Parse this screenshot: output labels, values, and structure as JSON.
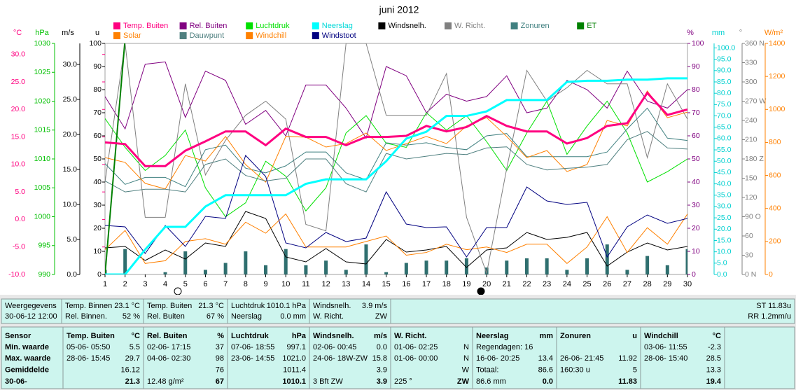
{
  "chart_data": {
    "type": "line",
    "title": "juni 2012",
    "x": [
      1,
      2,
      3,
      4,
      5,
      6,
      7,
      8,
      9,
      10,
      11,
      12,
      13,
      14,
      15,
      16,
      17,
      18,
      19,
      20,
      21,
      22,
      23,
      24,
      25,
      26,
      27,
      28,
      29,
      30
    ],
    "xlim": [
      1,
      30
    ],
    "xticks": [
      1,
      2,
      3,
      4,
      5,
      6,
      7,
      8,
      9,
      10,
      11,
      12,
      13,
      14,
      15,
      16,
      17,
      18,
      19,
      20,
      21,
      22,
      23,
      24,
      25,
      26,
      27,
      28,
      29,
      30
    ],
    "axes": [
      {
        "label": "°C",
        "side": "left",
        "color": "#ff0080",
        "ylim": [
          -10,
          32
        ],
        "yticks": [
          {
            "value": -10,
            "label": "-10.0"
          },
          {
            "value": -5,
            "label": "-5.0"
          },
          {
            "value": 0,
            "label": "0.0"
          },
          {
            "value": 5,
            "label": "5.0"
          },
          {
            "value": 10,
            "label": "10.0"
          },
          {
            "value": 15,
            "label": "15.0"
          },
          {
            "value": 20,
            "label": "20.0"
          },
          {
            "value": 25,
            "label": "25.0"
          },
          {
            "value": 30,
            "label": "30.0"
          }
        ]
      },
      {
        "label": "hPa",
        "side": "left",
        "color": "#00c000",
        "ylim": [
          990,
          1030
        ],
        "yticks": [
          990,
          995,
          1000,
          1005,
          1010,
          1015,
          1020,
          1025,
          1030
        ]
      },
      {
        "label": "m/s",
        "side": "left",
        "color": "#000000",
        "ylim": [
          0,
          33
        ],
        "yticks": [
          {
            "value": 0,
            "label": "0.0"
          },
          {
            "value": 5,
            "label": "5.0"
          },
          {
            "value": 10,
            "label": "10.0"
          },
          {
            "value": 15,
            "label": "15.0"
          },
          {
            "value": 20,
            "label": "20.0"
          },
          {
            "value": 25,
            "label": "25.0"
          },
          {
            "value": 30,
            "label": "30.0"
          }
        ]
      },
      {
        "label": "u",
        "side": "left",
        "color": "#000000",
        "ylim": [
          0,
          100
        ],
        "yticks": [
          0,
          10,
          20,
          30,
          40,
          50,
          60,
          70,
          80,
          90,
          100
        ]
      },
      {
        "label": "%",
        "side": "right",
        "color": "#800080",
        "ylim": [
          0,
          100
        ],
        "yticks": [
          0,
          10,
          20,
          30,
          40,
          50,
          60,
          70,
          80,
          90,
          100
        ]
      },
      {
        "label": "mm",
        "side": "right",
        "color": "#00d0d0",
        "ylim": [
          0,
          102
        ],
        "yticks": [
          {
            "value": 0,
            "label": "0.0"
          },
          {
            "value": 5,
            "label": "5.0"
          },
          {
            "value": 10,
            "label": "10.0"
          },
          {
            "value": 15,
            "label": "15.0"
          },
          {
            "value": 20,
            "label": "20.0"
          },
          {
            "value": 25,
            "label": "25.0"
          },
          {
            "value": 30,
            "label": "30.0"
          },
          {
            "value": 35,
            "label": "35.0"
          },
          {
            "value": 40,
            "label": "40.0"
          },
          {
            "value": 45,
            "label": "45.0"
          },
          {
            "value": 50,
            "label": "50.0"
          },
          {
            "value": 55,
            "label": "55.0"
          },
          {
            "value": 60,
            "label": "60.0"
          },
          {
            "value": 65,
            "label": "65.0"
          },
          {
            "value": 70,
            "label": "70.0"
          },
          {
            "value": 75,
            "label": "75.0"
          },
          {
            "value": 80,
            "label": "80.0"
          },
          {
            "value": 85,
            "label": "85.0"
          },
          {
            "value": 90,
            "label": "90.0"
          },
          {
            "value": 95,
            "label": "95.0"
          },
          {
            "value": 100,
            "label": "100.0"
          }
        ]
      },
      {
        "label": "°",
        "side": "right",
        "color": "#808080",
        "ylim": [
          0,
          360
        ],
        "yticks": [
          {
            "value": 0,
            "label": "0 N"
          },
          30,
          60,
          {
            "value": 90,
            "label": "90 O"
          },
          120,
          150,
          {
            "value": 180,
            "label": "180 Z"
          },
          210,
          240,
          {
            "value": 270,
            "label": "270 W"
          },
          300,
          330,
          {
            "value": 360,
            "label": "360 N"
          }
        ]
      },
      {
        "label": "W/m²",
        "side": "right",
        "color": "#ff8000",
        "ylim": [
          0,
          1400
        ],
        "yticks": [
          0,
          200,
          400,
          600,
          800,
          1000,
          1200,
          1400
        ]
      }
    ],
    "series": [
      {
        "name": "Temp. Buiten",
        "color": "#ff0080",
        "width": 3,
        "axis": "°C",
        "values": [
          14,
          13.7,
          9.7,
          9.7,
          12.5,
          14.2,
          16,
          16,
          13.5,
          16.5,
          15,
          15,
          13.5,
          15,
          15,
          15.2,
          17,
          16,
          16.8,
          18.8,
          17,
          16,
          16,
          13.8,
          14.8,
          17,
          17.5,
          23,
          19,
          20
        ]
      },
      {
        "name": "Rel. Buiten",
        "color": "#800080",
        "width": 1,
        "axis": "%",
        "values": [
          77,
          63,
          91,
          92,
          68,
          88,
          84,
          65,
          71,
          60,
          82,
          82,
          72,
          59,
          90,
          86,
          70,
          78,
          75,
          77,
          86,
          70,
          72,
          84,
          80,
          72,
          88,
          75,
          72,
          80
        ]
      },
      {
        "name": "Luchtdruk",
        "color": "#00e000",
        "width": 1,
        "axis": "hPa",
        "values": [
          1017,
          1012,
          1008,
          1010.6,
          1015,
          1005,
          1000,
          1002.4,
          1009.6,
          1007,
          1001,
          1005,
          1014.5,
          1017.5,
          1012.7,
          1012,
          1018,
          1015,
          1017.5,
          1013,
          1008,
          1014.5,
          1020,
          1010.8,
          1015.7,
          1020,
          1014.5,
          1006,
          1007.8,
          1010
        ]
      },
      {
        "name": "Neerslag",
        "color": "#00ffff",
        "width": 3,
        "axis": "mm",
        "values": [
          0,
          0,
          11,
          21,
          21,
          30,
          35,
          35,
          35,
          35,
          40,
          42,
          42,
          42,
          50,
          60,
          63,
          70,
          70,
          72,
          77,
          77,
          77,
          85,
          85.5,
          85.5,
          86,
          86,
          86.6,
          86.6
        ]
      },
      {
        "name": "Windsnelh.",
        "color": "#000000",
        "width": 1,
        "axis": "m/s",
        "values": [
          3.8,
          4,
          2,
          3.5,
          2.2,
          4.5,
          4,
          9,
          8,
          2.5,
          1.8,
          3.7,
          1.8,
          1.5,
          5,
          3.2,
          3.5,
          4,
          1,
          3.5,
          3.8,
          6,
          5,
          5.3,
          6,
          1.2,
          3.2,
          4.5,
          3.5,
          4
        ]
      },
      {
        "name": "W. Richt.",
        "color": "#808080",
        "width": 1,
        "axis": "°",
        "values": [
          144,
          360,
          89,
          89,
          297,
          155,
          209,
          248,
          270,
          242,
          78,
          68,
          360,
          360,
          248,
          248,
          248,
          313,
          89,
          2,
          165,
          318,
          270,
          291,
          318,
          297,
          297,
          182,
          297,
          242
        ]
      },
      {
        "name": "Zonuren",
        "color": "#408080",
        "width": 1,
        "axis": "u",
        "values": [
          48,
          39,
          42,
          42,
          38,
          54,
          56,
          46,
          44,
          47,
          53,
          53,
          44,
          41,
          57,
          56,
          57,
          55,
          54,
          60,
          61,
          51,
          51,
          51,
          51,
          53,
          63,
          72,
          59,
          58
        ]
      },
      {
        "name": "ET",
        "color": "#008000",
        "width": 2,
        "axis": "u",
        "values": [
          0,
          102,
          null,
          null,
          null,
          null,
          null,
          null,
          null,
          null,
          null,
          null,
          null,
          null,
          null,
          null,
          null,
          null,
          null,
          null,
          null,
          null,
          null,
          null,
          null,
          null,
          null,
          null,
          null,
          null
        ]
      },
      {
        "name": "Solar",
        "color": "#ff8000",
        "width": 1,
        "axis": "W/m²",
        "values": [
          708,
          679,
          552,
          518,
          721,
          687,
          836,
          666,
          560,
          836,
          832,
          772,
          793,
          857,
          751,
          793,
          836,
          793,
          900,
          950,
          836,
          708,
          751,
          624,
          666,
          933,
          900,
          1112,
          950,
          984
        ]
      },
      {
        "name": "Dauwpunt",
        "color": "#508080",
        "width": 1,
        "axis": "°C",
        "values": [
          7,
          5,
          5.5,
          5.5,
          5,
          10,
          11,
          8,
          7,
          7.5,
          11,
          11,
          6.5,
          5,
          12,
          11,
          11.5,
          12,
          11.8,
          13,
          13.2,
          10,
          9,
          9.3,
          9.5,
          10,
          14.5,
          16,
          13,
          12.8
        ]
      },
      {
        "name": "Windchill",
        "color": "#ff8000",
        "width": 1,
        "axis": "°C",
        "values": [
          -5.5,
          -2,
          -8,
          -7.5,
          -4,
          -3.5,
          -4.5,
          -0.5,
          -2.5,
          1,
          -5,
          -5,
          -5,
          -4,
          -3,
          -6.5,
          -6,
          -4.5,
          -5.5,
          -5,
          -6,
          -4.5,
          -4.5,
          -8,
          -5,
          0.5,
          -6,
          -1.5,
          -4.5,
          1
        ]
      },
      {
        "name": "Windstoot",
        "color": "#000080",
        "width": 1,
        "axis": "m/s",
        "values": [
          7,
          6.8,
          3,
          7,
          4,
          8.3,
          8,
          17,
          14,
          4.5,
          3.8,
          6,
          4.7,
          5.2,
          11.8,
          7.2,
          6.7,
          6.8,
          2.5,
          6.7,
          6.7,
          12.5,
          10.5,
          10,
          10.3,
          2.5,
          6.8,
          8.5,
          7.3,
          8
        ]
      }
    ],
    "bars": {
      "color": "#2f6f6f",
      "axis": "u",
      "values": [
        2,
        11,
        0,
        1,
        10,
        2,
        5,
        10,
        4,
        11,
        4,
        6,
        2,
        13,
        1,
        5,
        6,
        6,
        7,
        3,
        6,
        7,
        7,
        2,
        7,
        13,
        2,
        8,
        4,
        11
      ]
    }
  },
  "info": [
    {
      "lines": [
        {
          "left": "Weergegevens"
        },
        {
          "left": "30-06-12 12:00"
        }
      ]
    },
    {
      "lines": [
        {
          "left": "Temp. Binnen",
          "right": "23.1 °C"
        },
        {
          "left": "Rel. Binnen.",
          "right": "52 %"
        }
      ]
    },
    {
      "lines": [
        {
          "left": "Temp. Buiten",
          "right": "21.3 °C"
        },
        {
          "left": "Rel. Buiten",
          "right": "67 %"
        }
      ]
    },
    {
      "lines": [
        {
          "left": "Luchtdruk",
          "right": "1010.1 hPa"
        },
        {
          "left": "Neerslag",
          "right": "0.0 mm"
        }
      ]
    },
    {
      "lines": [
        {
          "left": "Windsnelh.",
          "right": "3.9 m/s"
        },
        {
          "left": "W. Richt.",
          "right": "ZW"
        }
      ]
    },
    {
      "lines": [
        {
          "right": "ST 11.83u"
        },
        {
          "right": "RR 1.2mm/u"
        }
      ]
    }
  ],
  "stats": [
    {
      "title": "Sensor",
      "rows": [
        {
          "left": "Min. waarde"
        },
        {
          "left": "Max. waarde"
        },
        {
          "left": "Gemiddelde"
        },
        {
          "left": "30-06-"
        }
      ]
    },
    {
      "title": "Temp. Buiten",
      "unit": "°C",
      "rows": [
        {
          "left": "05-06- 05:50",
          "right": "5.5"
        },
        {
          "left": "28-06- 15:45",
          "right": "29.7"
        },
        {
          "right": "16.12"
        },
        {
          "right": "21.3"
        }
      ]
    },
    {
      "title": "Rel. Buiten",
      "unit": "%",
      "rows": [
        {
          "left": "02-06- 17:15",
          "right": "37"
        },
        {
          "left": "04-06- 02:30",
          "right": "98"
        },
        {
          "right": "76"
        },
        {
          "left": "12.48 g/m²",
          "right": "67"
        }
      ]
    },
    {
      "title": "Luchtdruk",
      "unit": "hPa",
      "rows": [
        {
          "left": "07-06- 18:55",
          "right": "997.1"
        },
        {
          "left": "23-06- 14:55",
          "right": "1021.0"
        },
        {
          "right": "1011.4"
        },
        {
          "right": "1010.1"
        }
      ]
    },
    {
      "title": "Windsnelh.",
      "unit": "m/s",
      "rows": [
        {
          "left": "02-06- 00:45",
          "right": "0.0"
        },
        {
          "left": "24-06- 18W-ZW",
          "right": "15.8"
        },
        {
          "right": "3.9"
        },
        {
          "left": "3 Bft ZW",
          "right": "3.9"
        }
      ]
    },
    {
      "title": "W. Richt.",
      "rows": [
        {
          "left": "01-06- 02:25",
          "right": "N"
        },
        {
          "left": "01-06- 00:00",
          "right": "N"
        },
        {
          "right": "W"
        },
        {
          "left": "225 °",
          "right": "ZW"
        }
      ]
    },
    {
      "title": "Neerslag",
      "unit": "mm",
      "rows": [
        {
          "left": "Regendagen: 16"
        },
        {
          "left": "16-06- 20:25",
          "right": "13.4"
        },
        {
          "left": "Totaal:",
          "right": "86.6"
        },
        {
          "left": "86.6 mm",
          "right": "0.0"
        }
      ]
    },
    {
      "title": "Zonuren",
      "unit": "u",
      "rows": [
        {},
        {
          "left": "26-06- 21:45",
          "right": "11.92"
        },
        {
          "left": "160:30 u",
          "right": "5"
        },
        {
          "right": "11.83"
        }
      ]
    },
    {
      "title": "Windchill",
      "unit": "°C",
      "rows": [
        {
          "left": "03-06- 11:55",
          "right": "-2.3"
        },
        {
          "left": "28-06- 15:40",
          "right": "28.5"
        },
        {
          "right": "13.3"
        },
        {
          "right": "19.4"
        }
      ]
    }
  ]
}
